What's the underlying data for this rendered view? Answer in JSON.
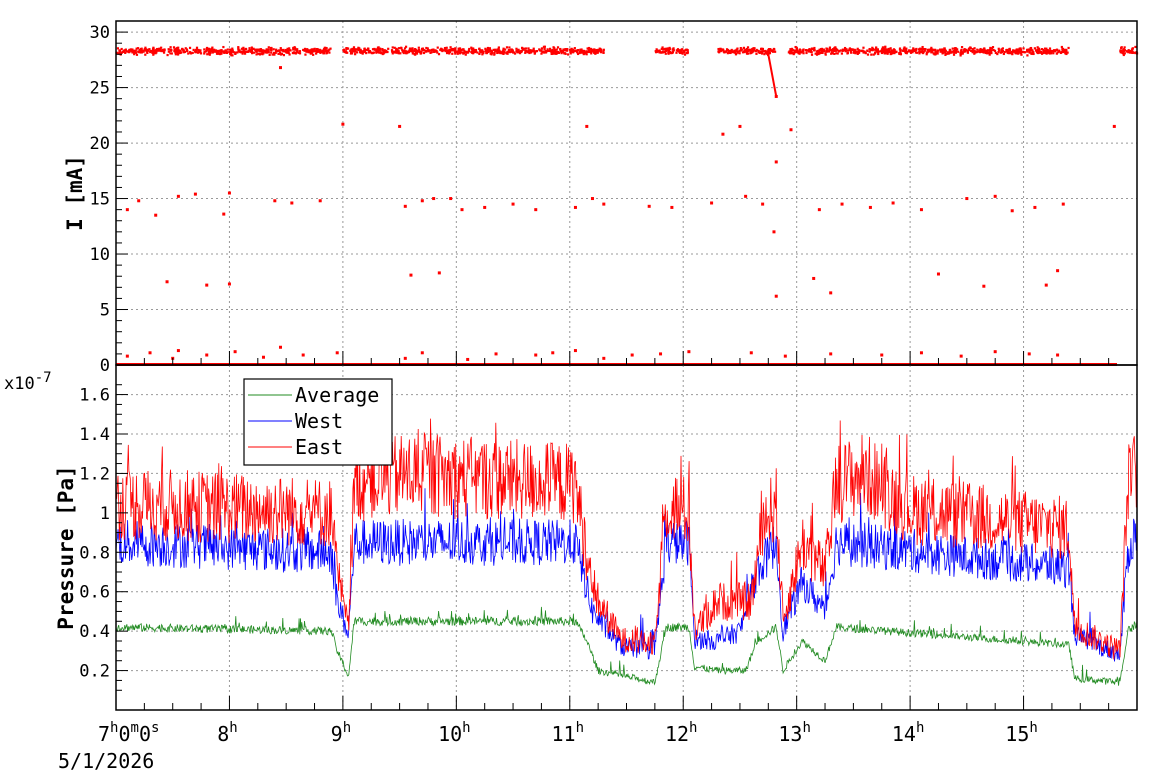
{
  "chart_data": [
    {
      "type": "scatter",
      "ylabel": "I [mA]",
      "ylim": [
        0,
        31
      ],
      "yticks": [
        "0",
        "5",
        "10",
        "15",
        "20",
        "25",
        "30"
      ],
      "xlim_hours": [
        7.0,
        16.0
      ],
      "series": [
        {
          "color": "#ff0000",
          "main_band_mA": 28.3,
          "band_segments_hours": [
            [
              7.0,
              8.9
            ],
            [
              9.0,
              10.2
            ],
            [
              10.2,
              11.3
            ],
            [
              11.75,
              12.05
            ],
            [
              12.3,
              12.82
            ],
            [
              12.93,
              15.4
            ],
            [
              15.85,
              16.0
            ]
          ],
          "outliers": [
            [
              7.1,
              14.0
            ],
            [
              7.2,
              14.8
            ],
            [
              7.35,
              13.5
            ],
            [
              7.45,
              7.5
            ],
            [
              7.55,
              15.2
            ],
            [
              7.7,
              15.4
            ],
            [
              7.8,
              7.2
            ],
            [
              7.95,
              13.6
            ],
            [
              8.0,
              15.5
            ],
            [
              8.0,
              7.3
            ],
            [
              8.4,
              14.8
            ],
            [
              8.55,
              14.6
            ],
            [
              8.8,
              14.8
            ],
            [
              8.45,
              26.8
            ],
            [
              9.0,
              21.7
            ],
            [
              9.5,
              21.5
            ],
            [
              9.55,
              14.3
            ],
            [
              9.6,
              8.1
            ],
            [
              9.7,
              14.8
            ],
            [
              9.8,
              15.0
            ],
            [
              9.85,
              8.3
            ],
            [
              9.95,
              15.0
            ],
            [
              10.05,
              14.0
            ],
            [
              10.25,
              14.2
            ],
            [
              10.5,
              14.5
            ],
            [
              10.7,
              14.0
            ],
            [
              11.05,
              14.2
            ],
            [
              11.15,
              21.5
            ],
            [
              11.2,
              15.0
            ],
            [
              11.3,
              14.5
            ],
            [
              11.7,
              14.3
            ],
            [
              11.9,
              14.2
            ],
            [
              12.25,
              14.6
            ],
            [
              12.35,
              20.8
            ],
            [
              12.5,
              21.5
            ],
            [
              12.55,
              15.2
            ],
            [
              12.7,
              14.5
            ],
            [
              12.8,
              12.0
            ],
            [
              12.82,
              6.2
            ],
            [
              12.82,
              18.3
            ],
            [
              12.82,
              24.2
            ],
            [
              12.95,
              21.2
            ],
            [
              13.15,
              7.8
            ],
            [
              13.3,
              6.5
            ],
            [
              13.2,
              14.0
            ],
            [
              13.4,
              14.5
            ],
            [
              13.65,
              14.2
            ],
            [
              13.85,
              14.6
            ],
            [
              14.1,
              14.0
            ],
            [
              14.25,
              8.2
            ],
            [
              14.5,
              15.0
            ],
            [
              14.65,
              7.1
            ],
            [
              14.75,
              15.2
            ],
            [
              14.9,
              13.9
            ],
            [
              15.1,
              14.2
            ],
            [
              15.2,
              7.2
            ],
            [
              15.3,
              8.5
            ],
            [
              15.35,
              14.5
            ],
            [
              15.8,
              21.5
            ],
            [
              7.1,
              0.8
            ],
            [
              7.3,
              1.1
            ],
            [
              7.5,
              0.6
            ],
            [
              7.55,
              1.3
            ],
            [
              7.8,
              0.9
            ],
            [
              8.05,
              1.2
            ],
            [
              8.3,
              0.7
            ],
            [
              8.45,
              1.6
            ],
            [
              8.65,
              0.9
            ],
            [
              8.95,
              1.1
            ],
            [
              9.55,
              0.6
            ],
            [
              9.7,
              1.1
            ],
            [
              10.1,
              0.5
            ],
            [
              10.35,
              1.0
            ],
            [
              10.7,
              0.9
            ],
            [
              10.85,
              1.1
            ],
            [
              11.05,
              1.3
            ],
            [
              11.3,
              0.6
            ],
            [
              11.55,
              0.9
            ],
            [
              11.8,
              1.0
            ],
            [
              12.05,
              1.2
            ],
            [
              12.6,
              1.1
            ],
            [
              12.9,
              0.8
            ],
            [
              13.3,
              1.0
            ],
            [
              13.75,
              0.9
            ],
            [
              14.1,
              1.1
            ],
            [
              14.45,
              0.8
            ],
            [
              14.75,
              1.2
            ],
            [
              15.05,
              1.0
            ],
            [
              15.3,
              0.9
            ]
          ]
        }
      ]
    },
    {
      "type": "line",
      "ylabel": "Pressure [Pa]",
      "multiplier": "x10",
      "multiplier_exp": "-7",
      "ylim": [
        0.0,
        1.75
      ],
      "yticks": [
        "0.2",
        "0.4",
        "0.6",
        "0.8",
        "1",
        "1.2",
        "1.4",
        "1.6"
      ],
      "x_ticks": [
        "8",
        "9",
        "10",
        "11",
        "12",
        "13",
        "14",
        "15"
      ],
      "x_unit": "h",
      "x_origin": {
        "h": "7",
        "m": "0",
        "s": "0"
      },
      "date": "5/1/2026",
      "xlim_hours": [
        7.0,
        16.0
      ],
      "legend_position": "top-left",
      "series": [
        {
          "name": "Average",
          "color": "#228b22",
          "points": [
            [
              7.0,
              0.42
            ],
            [
              8.9,
              0.4
            ],
            [
              8.95,
              0.3
            ],
            [
              9.05,
              0.17
            ],
            [
              9.1,
              0.45
            ],
            [
              11.05,
              0.45
            ],
            [
              11.15,
              0.35
            ],
            [
              11.25,
              0.2
            ],
            [
              11.5,
              0.17
            ],
            [
              11.75,
              0.14
            ],
            [
              11.85,
              0.42
            ],
            [
              12.05,
              0.42
            ],
            [
              12.1,
              0.22
            ],
            [
              12.3,
              0.2
            ],
            [
              12.55,
              0.2
            ],
            [
              12.65,
              0.35
            ],
            [
              12.82,
              0.42
            ],
            [
              12.88,
              0.2
            ],
            [
              13.05,
              0.35
            ],
            [
              13.25,
              0.25
            ],
            [
              13.35,
              0.42
            ],
            [
              15.4,
              0.33
            ],
            [
              15.45,
              0.16
            ],
            [
              15.85,
              0.14
            ],
            [
              15.92,
              0.4
            ],
            [
              16.0,
              0.44
            ]
          ],
          "noise": 0.05
        },
        {
          "name": "West",
          "color": "#0000ff",
          "points": [
            [
              7.0,
              0.85
            ],
            [
              8.9,
              0.8
            ],
            [
              8.95,
              0.55
            ],
            [
              9.05,
              0.38
            ],
            [
              9.1,
              0.85
            ],
            [
              11.05,
              0.85
            ],
            [
              11.2,
              0.5
            ],
            [
              11.45,
              0.32
            ],
            [
              11.75,
              0.3
            ],
            [
              11.85,
              0.85
            ],
            [
              12.05,
              0.85
            ],
            [
              12.1,
              0.36
            ],
            [
              12.3,
              0.35
            ],
            [
              12.5,
              0.4
            ],
            [
              12.65,
              0.7
            ],
            [
              12.82,
              0.85
            ],
            [
              12.88,
              0.4
            ],
            [
              13.05,
              0.65
            ],
            [
              13.25,
              0.5
            ],
            [
              13.35,
              0.85
            ],
            [
              15.4,
              0.72
            ],
            [
              15.45,
              0.38
            ],
            [
              15.85,
              0.28
            ],
            [
              15.92,
              0.8
            ],
            [
              16.0,
              0.92
            ]
          ],
          "noise": 0.14
        },
        {
          "name": "East",
          "color": "#ff0000",
          "points": [
            [
              7.0,
              1.05
            ],
            [
              8.9,
              1.0
            ],
            [
              8.95,
              0.7
            ],
            [
              9.05,
              0.4
            ],
            [
              9.1,
              1.15
            ],
            [
              9.6,
              1.2
            ],
            [
              10.0,
              1.18
            ],
            [
              11.05,
              1.15
            ],
            [
              11.2,
              0.6
            ],
            [
              11.45,
              0.36
            ],
            [
              11.75,
              0.33
            ],
            [
              11.85,
              1.05
            ],
            [
              12.05,
              1.0
            ],
            [
              12.1,
              0.4
            ],
            [
              12.3,
              0.55
            ],
            [
              12.6,
              0.55
            ],
            [
              12.7,
              0.95
            ],
            [
              12.82,
              1.05
            ],
            [
              12.88,
              0.45
            ],
            [
              13.05,
              0.85
            ],
            [
              13.25,
              0.7
            ],
            [
              13.35,
              1.15
            ],
            [
              13.6,
              1.2
            ],
            [
              14.0,
              1.02
            ],
            [
              15.4,
              0.92
            ],
            [
              15.45,
              0.42
            ],
            [
              15.85,
              0.3
            ],
            [
              15.92,
              1.15
            ],
            [
              16.0,
              1.22
            ]
          ],
          "noise": 0.18
        }
      ]
    }
  ]
}
